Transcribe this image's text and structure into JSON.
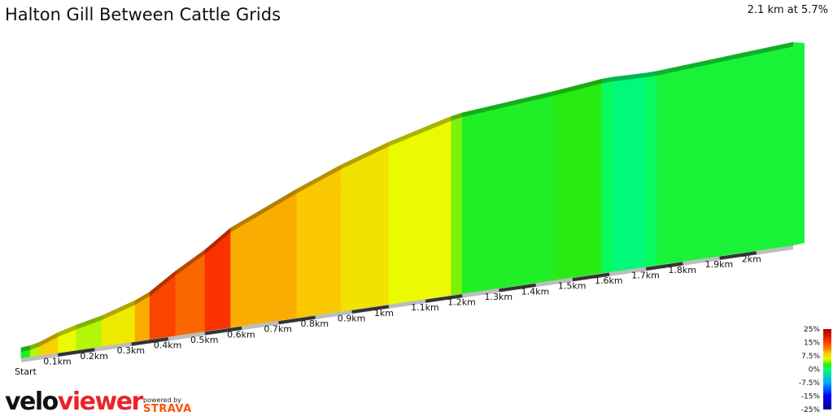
{
  "title": "Halton Gill Between Cattle Grids",
  "summary": "2.1 km at 5.7%",
  "branding": {
    "logo_part1": "velo",
    "logo_part2": "viewer",
    "powered_by": "powered by",
    "strava": "STRAVA"
  },
  "chart_data": {
    "type": "area",
    "style": "3d-elevation-profile",
    "total_distance_km": 2.1,
    "average_gradient_pct": 5.7,
    "segments": [
      {
        "from_km": 0.0,
        "to_km": 0.025,
        "gradient_pct": 2
      },
      {
        "from_km": 0.025,
        "to_km": 0.05,
        "gradient_pct": 5
      },
      {
        "from_km": 0.05,
        "to_km": 0.1,
        "gradient_pct": 8.5
      },
      {
        "from_km": 0.1,
        "to_km": 0.15,
        "gradient_pct": 6
      },
      {
        "from_km": 0.15,
        "to_km": 0.22,
        "gradient_pct": 5
      },
      {
        "from_km": 0.22,
        "to_km": 0.31,
        "gradient_pct": 7
      },
      {
        "from_km": 0.31,
        "to_km": 0.35,
        "gradient_pct": 10
      },
      {
        "from_km": 0.35,
        "to_km": 0.42,
        "gradient_pct": 15
      },
      {
        "from_km": 0.42,
        "to_km": 0.5,
        "gradient_pct": 13
      },
      {
        "from_km": 0.5,
        "to_km": 0.57,
        "gradient_pct": 16
      },
      {
        "from_km": 0.57,
        "to_km": 0.75,
        "gradient_pct": 10
      },
      {
        "from_km": 0.75,
        "to_km": 0.87,
        "gradient_pct": 9
      },
      {
        "from_km": 0.87,
        "to_km": 1.0,
        "gradient_pct": 7.5
      },
      {
        "from_km": 1.0,
        "to_km": 1.17,
        "gradient_pct": 6
      },
      {
        "from_km": 1.17,
        "to_km": 1.2,
        "gradient_pct": 4
      },
      {
        "from_km": 1.2,
        "to_km": 1.45,
        "gradient_pct": 2
      },
      {
        "from_km": 1.45,
        "to_km": 1.58,
        "gradient_pct": 2.5
      },
      {
        "from_km": 1.58,
        "to_km": 1.61,
        "gradient_pct": 0.5
      },
      {
        "from_km": 1.61,
        "to_km": 1.7,
        "gradient_pct": -0.5
      },
      {
        "from_km": 1.7,
        "to_km": 1.73,
        "gradient_pct": 0.5
      },
      {
        "from_km": 1.73,
        "to_km": 1.95,
        "gradient_pct": 1.5
      },
      {
        "from_km": 1.95,
        "to_km": 2.1,
        "gradient_pct": 1.5
      }
    ],
    "distance_labels": [
      {
        "km": 0,
        "label": "Start"
      },
      {
        "km": 0.1,
        "label": "0.1km"
      },
      {
        "km": 0.2,
        "label": "0.2km"
      },
      {
        "km": 0.3,
        "label": "0.3km"
      },
      {
        "km": 0.4,
        "label": "0.4km"
      },
      {
        "km": 0.5,
        "label": "0.5km"
      },
      {
        "km": 0.6,
        "label": "0.6km"
      },
      {
        "km": 0.7,
        "label": "0.7km"
      },
      {
        "km": 0.8,
        "label": "0.8km"
      },
      {
        "km": 0.9,
        "label": "0.9km"
      },
      {
        "km": 1.0,
        "label": "1km"
      },
      {
        "km": 1.1,
        "label": "1.1km"
      },
      {
        "km": 1.2,
        "label": "1.2km"
      },
      {
        "km": 1.3,
        "label": "1.3km"
      },
      {
        "km": 1.4,
        "label": "1.4km"
      },
      {
        "km": 1.5,
        "label": "1.5km"
      },
      {
        "km": 1.6,
        "label": "1.6km"
      },
      {
        "km": 1.7,
        "label": "1.7km"
      },
      {
        "km": 1.8,
        "label": "1.8km"
      },
      {
        "km": 1.9,
        "label": "1.9km"
      },
      {
        "km": 2.0,
        "label": "2km"
      }
    ],
    "gradient_scale": {
      "labels": [
        "25%",
        "15%",
        "7.5%",
        "0%",
        "-7.5%",
        "-15%",
        "-25%"
      ],
      "values": [
        25,
        15,
        7.5,
        0,
        -7.5,
        -15,
        -25
      ]
    }
  }
}
